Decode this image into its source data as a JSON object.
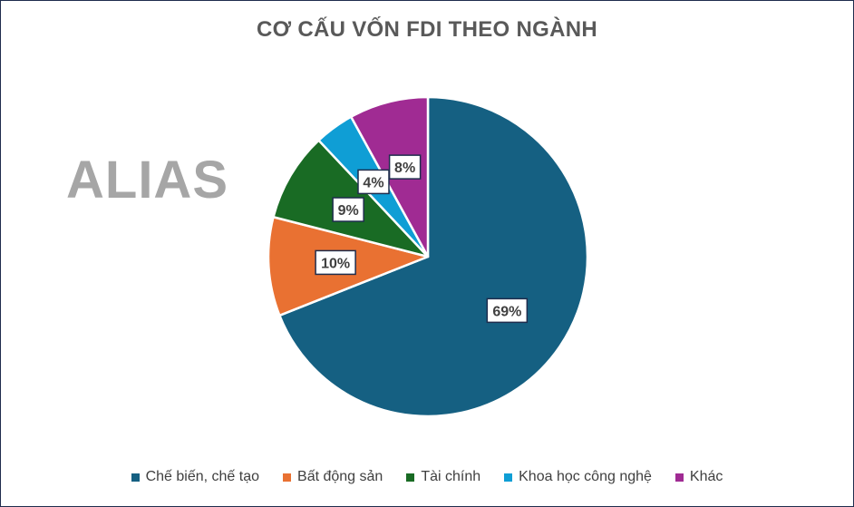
{
  "chart_data": {
    "type": "pie",
    "title": "CƠ CẤU VỐN FDI THEO NGÀNH",
    "watermark": "ALIAS",
    "categories": [
      "Chế biến, chế tạo",
      "Bất động sản",
      "Tài chính",
      "Khoa học công nghệ",
      "Khác"
    ],
    "values": [
      69,
      10,
      9,
      4,
      8
    ],
    "data_labels": [
      "69%",
      "10%",
      "9%",
      "4%",
      "8%"
    ],
    "colors": [
      "#156082",
      "#e97132",
      "#196b24",
      "#0f9ed5",
      "#a02b93"
    ],
    "start_angle": "12 o'clock",
    "direction": "clockwise",
    "legend_position": "bottom"
  }
}
